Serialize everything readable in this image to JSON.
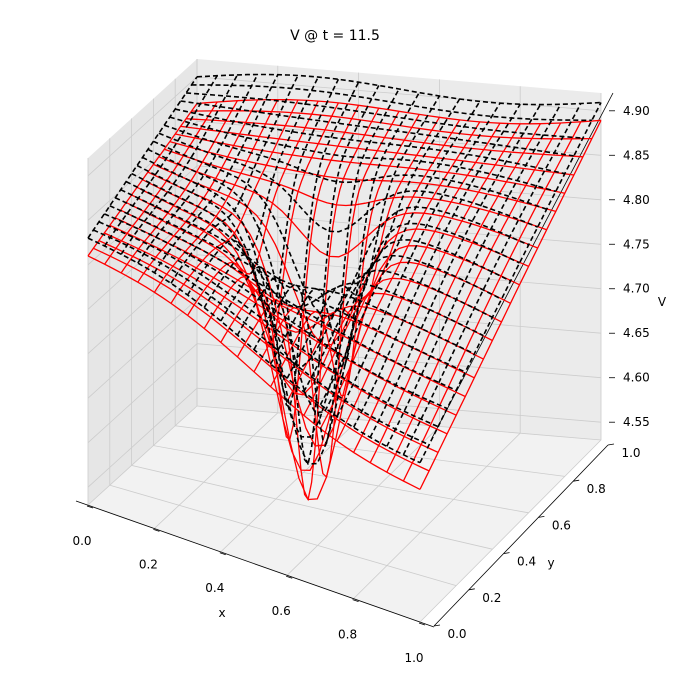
{
  "chart_data": {
    "type": "surface-wireframe-3d",
    "title": "V @ t = 11.5",
    "xlabel": "x",
    "ylabel": "y",
    "zlabel": "V",
    "xlim": [
      0,
      1
    ],
    "ylim": [
      0,
      1
    ],
    "zlim": [
      4.53,
      4.92
    ],
    "x_ticks": [
      "0.0",
      "0.2",
      "0.4",
      "0.6",
      "0.8",
      "1.0"
    ],
    "y_ticks": [
      "0.0",
      "0.2",
      "0.4",
      "0.6",
      "0.8",
      "1.0"
    ],
    "z_ticks": [
      "4.55",
      "4.60",
      "4.65",
      "4.70",
      "4.75",
      "4.80",
      "4.85",
      "4.90"
    ],
    "grid": true,
    "grid_n": 21,
    "series": [
      {
        "style": "solid",
        "color": "#ff0000",
        "corner_values": {
          "x0y0": 4.81,
          "x1y0": 4.68,
          "x0y1": 4.87,
          "x1y1": 4.89
        },
        "minimum": {
          "x": 0.46,
          "y": 0.5,
          "value": 4.52
        }
      },
      {
        "style": "dashed",
        "color": "#000000",
        "corner_values": {
          "x0y0": 4.83,
          "x1y0": 4.71,
          "x0y1": 4.9,
          "x1y1": 4.91
        },
        "minimum": {
          "x": 0.46,
          "y": 0.5,
          "value": 4.56
        }
      }
    ]
  }
}
